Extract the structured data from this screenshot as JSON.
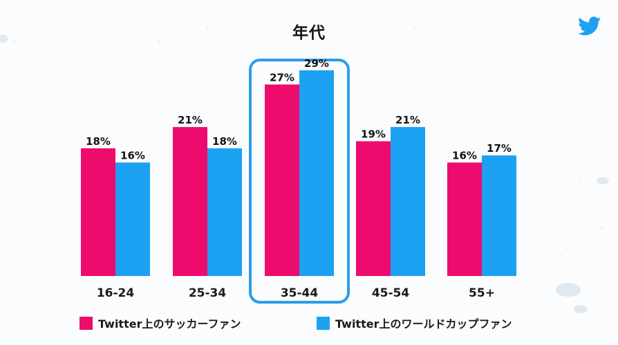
{
  "chart_data": {
    "type": "bar",
    "title": "年代",
    "categories": [
      "16-24",
      "25-34",
      "35-44",
      "45-54",
      "55+"
    ],
    "series": [
      {
        "name": "Twitter上のサッカーファン",
        "values": [
          18,
          21,
          27,
          19,
          16
        ],
        "color": "#ED0C6E"
      },
      {
        "name": "Twitter上のワールドカップファン",
        "values": [
          16,
          18,
          29,
          21,
          17
        ],
        "color": "#1DA1F2"
      }
    ],
    "value_suffix": "%",
    "ylim": [
      0,
      30
    ],
    "grid": false,
    "legend_position": "bottom",
    "highlighted_category": "35-44",
    "highlight_color": "#2D9CE8"
  },
  "brand": {
    "icon": "twitter-bird-icon",
    "color": "#1DA1F2"
  }
}
